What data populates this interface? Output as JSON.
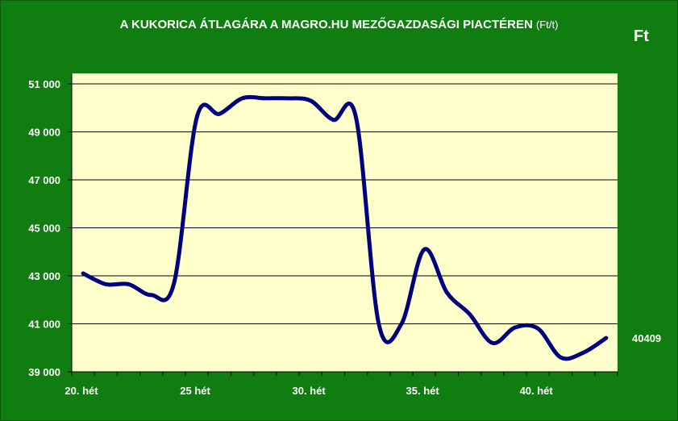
{
  "colors": {
    "background": "#0f7d0f",
    "plot_area": "#ffffcc",
    "line": "#000080",
    "gridline": "#000000",
    "text": "#ffffff"
  },
  "header": {
    "title": "A KUKORICA ÁTLAGÁRA A MAGRO.HU MEZŐGAZDASÁGI PIACTÉREN",
    "title_unit": "(Ft/t)",
    "unit_label": "Ft",
    "last_value_label": "40409"
  },
  "chart_data": {
    "type": "line",
    "title": "A KUKORICA ÁTLAGÁRA A MAGRO.HU MEZŐGAZDASÁGI PIACTÉREN (Ft/t)",
    "xlabel": "",
    "ylabel": "Ft",
    "ylim": [
      39000,
      51000
    ],
    "yticks": [
      39000,
      41000,
      43000,
      45000,
      47000,
      49000,
      51000
    ],
    "ytick_labels": [
      "39 000",
      "41 000",
      "43 000",
      "45 000",
      "47 000",
      "49 000",
      "51 000"
    ],
    "xlim": [
      20,
      44
    ],
    "xticks": [
      20,
      25,
      30,
      35,
      40
    ],
    "xtick_labels": [
      "20. hét",
      "25 hét",
      "30. hét",
      "35. hét",
      "40. hét"
    ],
    "grid": true,
    "legend": false,
    "series": [
      {
        "x": [
          20.5,
          21.5,
          22.5,
          23.5,
          24.5,
          25.5,
          26.5,
          27.5,
          28.5,
          29.5,
          30.5,
          31.5,
          32.5,
          33.5,
          34.5,
          35.5,
          36.5,
          37.5,
          38.5,
          39.5,
          40.5,
          41.5,
          42.5,
          43.5
        ],
        "values": [
          43100,
          42650,
          42650,
          42200,
          42700,
          49600,
          49750,
          50400,
          50400,
          50400,
          50300,
          49500,
          49600,
          41000,
          41000,
          44100,
          42300,
          41400,
          40200,
          40850,
          40800,
          39600,
          39800,
          40409
        ]
      }
    ]
  }
}
